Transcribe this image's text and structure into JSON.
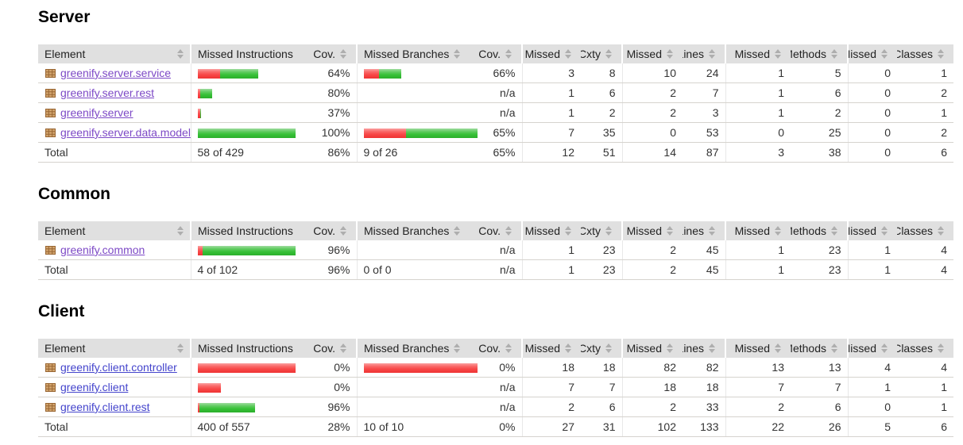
{
  "report": {
    "colors": {
      "header_bg": "#e0e0e0",
      "bar_red": "#f84848",
      "bar_green": "#38c138",
      "row_border": "#d6d3ce",
      "link_visited_purple": "#7d49c6",
      "link_unvisited_blue": "#4444cc"
    },
    "columns": [
      {
        "label": "Element",
        "align": "left",
        "group_start": false,
        "sorted": false
      },
      {
        "label": "Missed Instructions",
        "align": "left",
        "group_start": true,
        "sorted": true
      },
      {
        "label": "Cov.",
        "align": "right",
        "group_start": false,
        "sorted": false
      },
      {
        "label": "Missed Branches",
        "align": "left",
        "group_start": true,
        "sorted": false
      },
      {
        "label": "Cov.",
        "align": "right",
        "group_start": false,
        "sorted": false
      },
      {
        "label": "Missed",
        "align": "right",
        "group_start": true,
        "sorted": false
      },
      {
        "label": "Cxty",
        "align": "right",
        "group_start": false,
        "sorted": false
      },
      {
        "label": "Missed",
        "align": "right",
        "group_start": true,
        "sorted": false
      },
      {
        "label": "Lines",
        "align": "right",
        "group_start": false,
        "sorted": false
      },
      {
        "label": "Missed",
        "align": "right",
        "group_start": true,
        "sorted": false
      },
      {
        "label": "Methods",
        "align": "right",
        "group_start": false,
        "sorted": false
      },
      {
        "label": "Missed",
        "align": "right",
        "group_start": true,
        "sorted": false
      },
      {
        "label": "Classes",
        "align": "right",
        "group_start": false,
        "sorted": false
      }
    ],
    "sections": [
      {
        "title": "Server",
        "link_color": "#7d49c6",
        "rows": [
          {
            "name": "greenify.server.service",
            "instr_bar": {
              "red": 28,
              "green": 48
            },
            "instr_cov": "64%",
            "branch_bar": {
              "red": 19,
              "green": 28
            },
            "branch_cov": "66%",
            "counters": [
              "3",
              "8",
              "10",
              "24",
              "1",
              "5",
              "0",
              "1"
            ]
          },
          {
            "name": "greenify.server.rest",
            "instr_bar": {
              "red": 3,
              "green": 15
            },
            "instr_cov": "80%",
            "branch_bar": {
              "red": 0,
              "green": 0
            },
            "branch_cov": "n/a",
            "counters": [
              "1",
              "6",
              "2",
              "7",
              "1",
              "6",
              "0",
              "2"
            ]
          },
          {
            "name": "greenify.server",
            "instr_bar": {
              "red": 3,
              "green": 1
            },
            "instr_cov": "37%",
            "branch_bar": {
              "red": 0,
              "green": 0
            },
            "branch_cov": "n/a",
            "counters": [
              "1",
              "2",
              "2",
              "3",
              "1",
              "2",
              "0",
              "1"
            ]
          },
          {
            "name": "greenify.server.data.model",
            "instr_bar": {
              "red": 0,
              "green": 144
            },
            "instr_cov": "100%",
            "branch_bar": {
              "red": 53,
              "green": 91
            },
            "branch_cov": "65%",
            "counters": [
              "7",
              "35",
              "0",
              "53",
              "0",
              "25",
              "0",
              "2"
            ]
          }
        ],
        "total": {
          "label": "Total",
          "instr_text": "58 of 429",
          "instr_cov": "86%",
          "branch_text": "9 of 26",
          "branch_cov": "65%",
          "counters": [
            "12",
            "51",
            "14",
            "87",
            "3",
            "38",
            "0",
            "6"
          ]
        }
      },
      {
        "title": "Common",
        "link_color": "#7d49c6",
        "rows": [
          {
            "name": "greenify.common",
            "instr_bar": {
              "red": 6,
              "green": 138
            },
            "instr_cov": "96%",
            "branch_bar": {
              "red": 0,
              "green": 0
            },
            "branch_cov": "n/a",
            "counters": [
              "1",
              "23",
              "2",
              "45",
              "1",
              "23",
              "1",
              "4"
            ]
          }
        ],
        "total": {
          "label": "Total",
          "instr_text": "4 of 102",
          "instr_cov": "96%",
          "branch_text": "0 of 0",
          "branch_cov": "n/a",
          "counters": [
            "1",
            "23",
            "2",
            "45",
            "1",
            "23",
            "1",
            "4"
          ]
        }
      },
      {
        "title": "Client",
        "link_color": "#4444cc",
        "rows": [
          {
            "name": "greenify.client.controller",
            "instr_bar": {
              "red": 147,
              "green": 0
            },
            "instr_cov": "0%",
            "branch_bar": {
              "red": 144,
              "green": 0
            },
            "branch_cov": "0%",
            "counters": [
              "18",
              "18",
              "82",
              "82",
              "13",
              "13",
              "4",
              "4"
            ]
          },
          {
            "name": "greenify.client",
            "instr_bar": {
              "red": 29,
              "green": 0
            },
            "instr_cov": "0%",
            "branch_bar": {
              "red": 0,
              "green": 0
            },
            "branch_cov": "n/a",
            "counters": [
              "7",
              "7",
              "18",
              "18",
              "7",
              "7",
              "1",
              "1"
            ]
          },
          {
            "name": "greenify.client.rest",
            "instr_bar": {
              "red": 2,
              "green": 70
            },
            "instr_cov": "96%",
            "branch_bar": {
              "red": 0,
              "green": 0
            },
            "branch_cov": "n/a",
            "counters": [
              "2",
              "6",
              "2",
              "33",
              "2",
              "6",
              "0",
              "1"
            ]
          }
        ],
        "total": {
          "label": "Total",
          "instr_text": "400 of 557",
          "instr_cov": "28%",
          "branch_text": "10 of 10",
          "branch_cov": "0%",
          "counters": [
            "27",
            "31",
            "102",
            "133",
            "22",
            "26",
            "5",
            "6"
          ]
        }
      }
    ]
  }
}
